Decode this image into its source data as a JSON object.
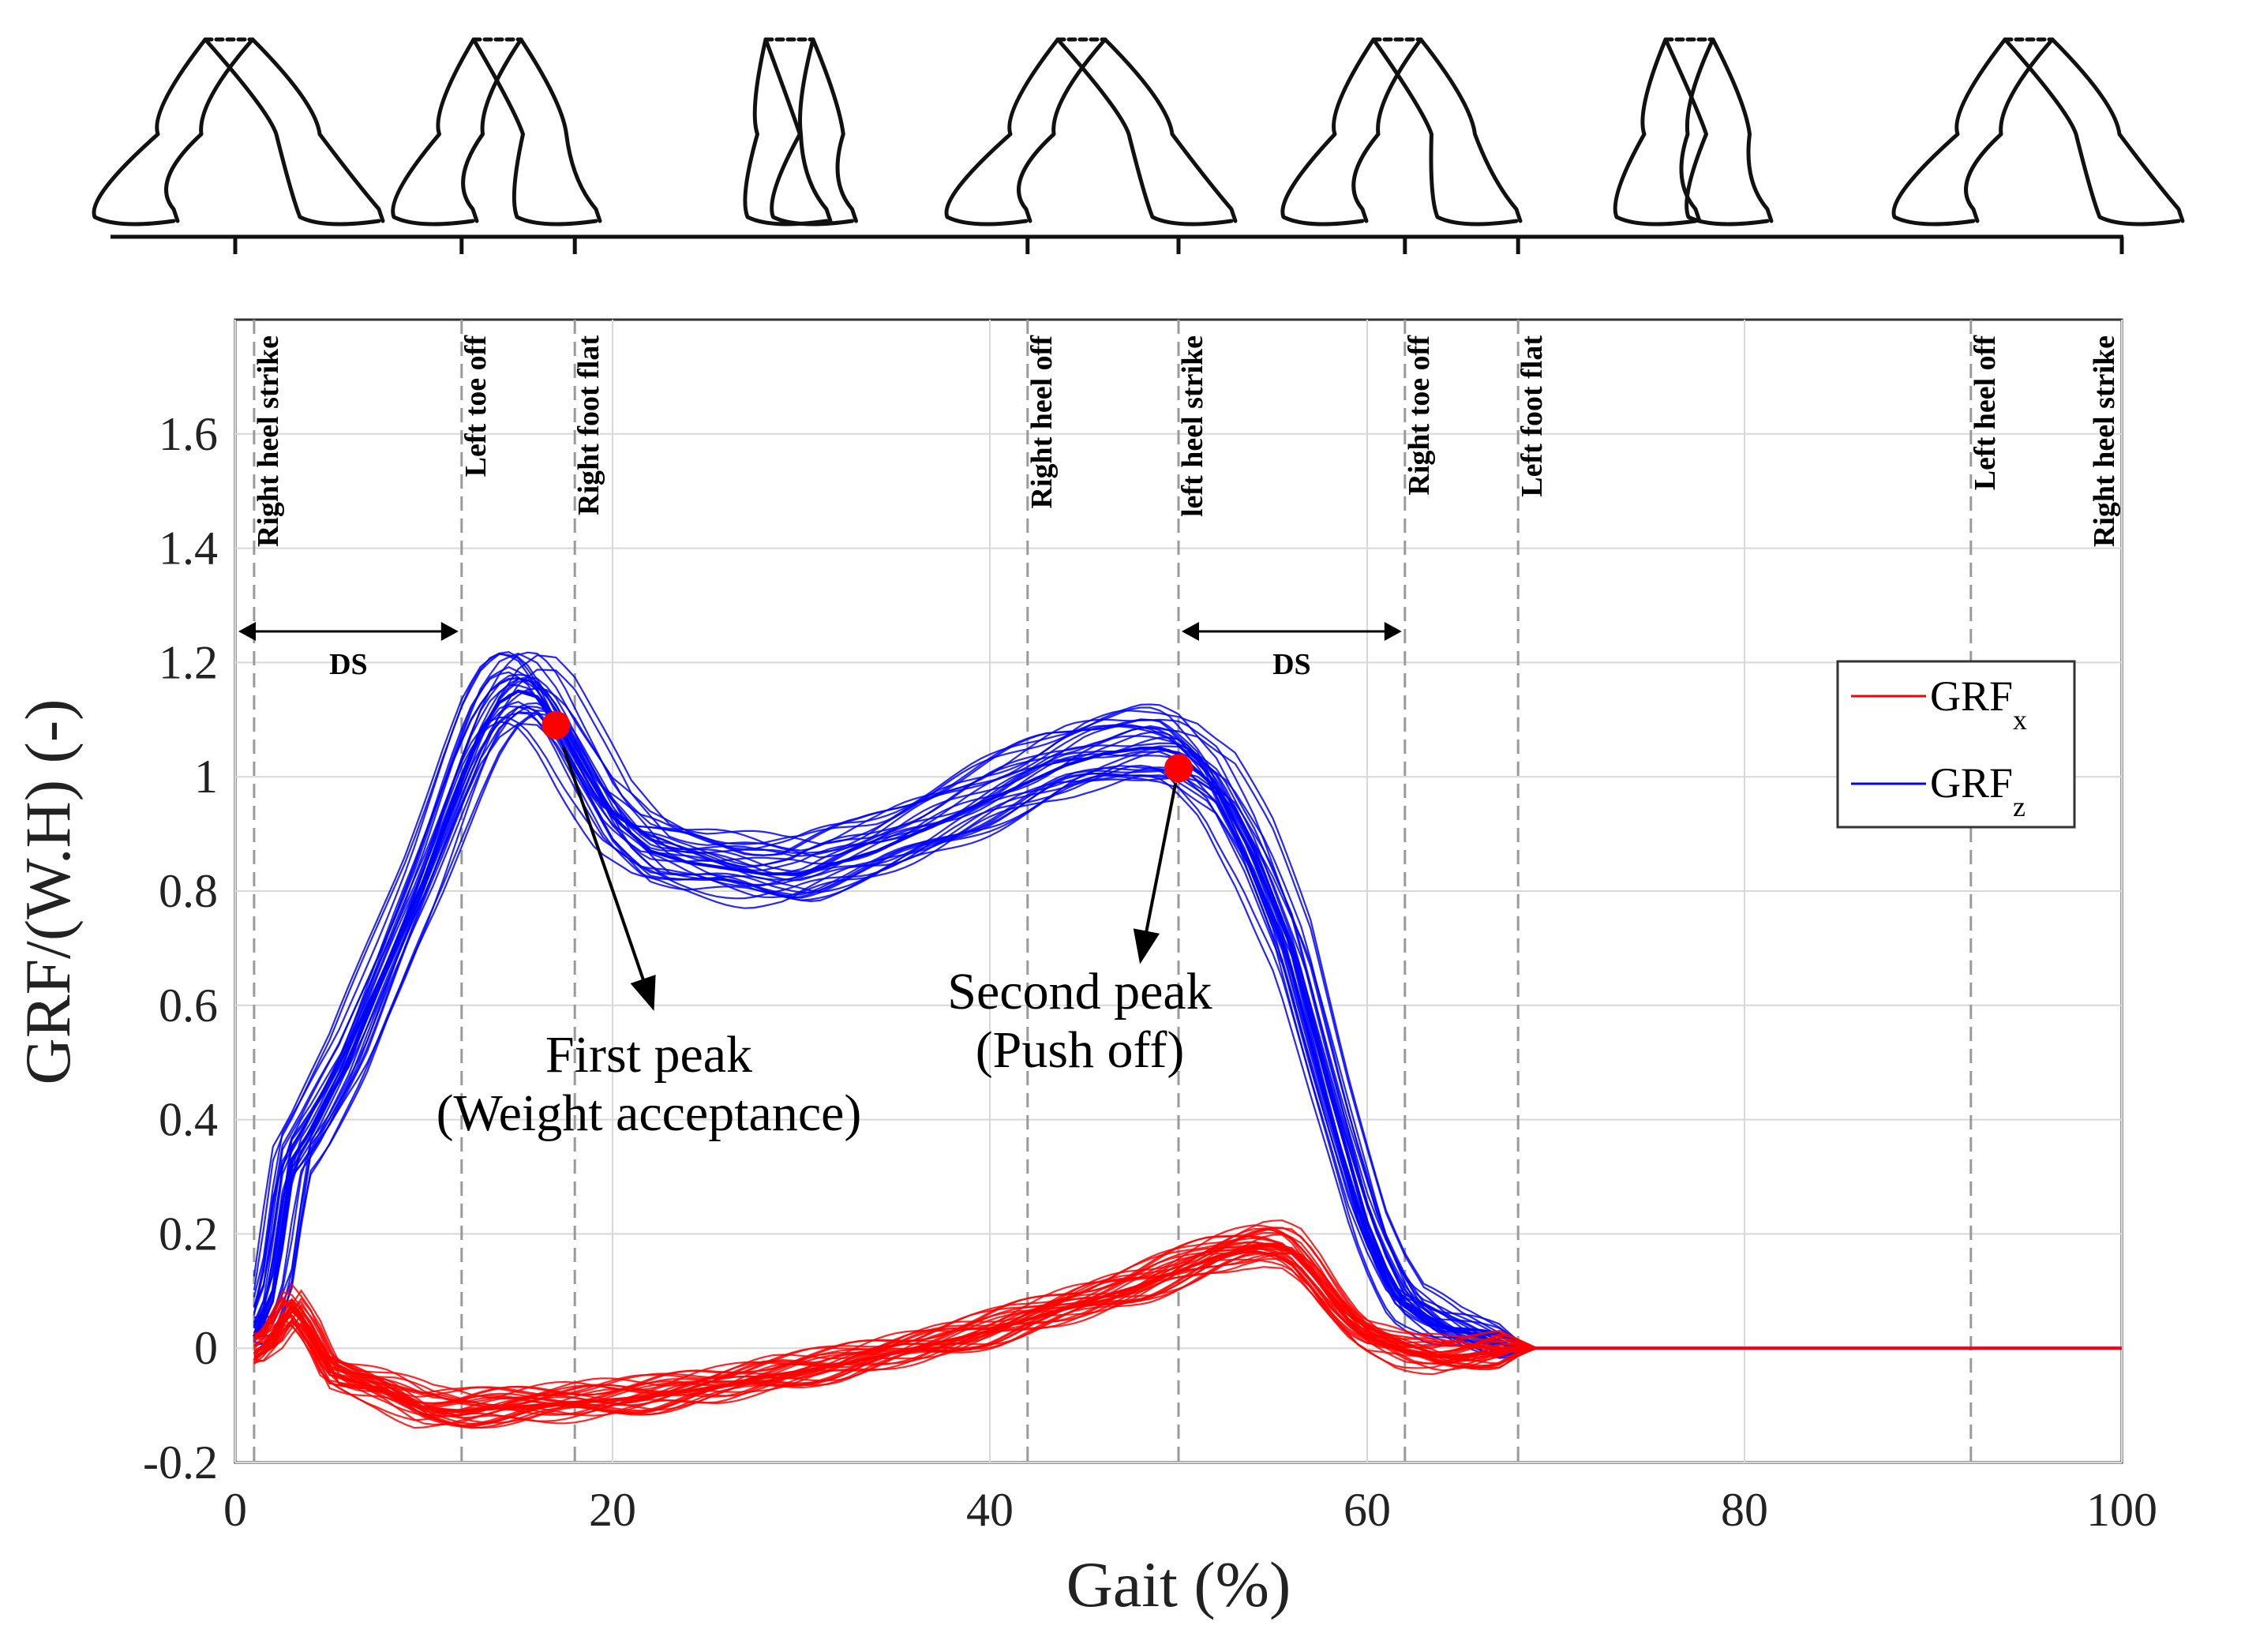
{
  "chart_data": {
    "type": "line",
    "xlabel": "Gait (%)",
    "ylabel": "GRF/(W.H) (-)",
    "xlim": [
      0,
      100
    ],
    "ylim": [
      -0.2,
      1.8
    ],
    "x_ticks": [
      0,
      20,
      40,
      60,
      80,
      100
    ],
    "y_ticks": [
      -0.2,
      0,
      0.2,
      0.4,
      0.6,
      0.8,
      1,
      1.2,
      1.4,
      1.6
    ],
    "y_tick_labels": [
      "-0.2",
      "0",
      "0.2",
      "0.4",
      "0.6",
      "0.8",
      "1",
      "1.2",
      "1.4",
      "1.6"
    ],
    "grid": true,
    "series": [
      {
        "name": "GRF_x",
        "legend_main": "GRF",
        "legend_sub": "x",
        "color": "#ff0000",
        "trial_count": 30,
        "x": [
          1,
          2,
          3,
          4,
          5,
          6,
          8,
          10,
          12,
          14,
          16,
          18,
          20,
          22,
          24,
          26,
          28,
          30,
          32,
          34,
          36,
          38,
          40,
          42,
          44,
          46,
          48,
          50,
          52,
          54,
          55,
          56,
          57,
          58,
          59,
          60,
          62,
          64,
          66,
          68,
          70,
          75,
          80,
          85,
          90,
          95,
          100
        ],
        "values": [
          -0.01,
          0.02,
          0.075,
          0.03,
          -0.04,
          -0.055,
          -0.075,
          -0.105,
          -0.11,
          -0.105,
          -0.1,
          -0.095,
          -0.09,
          -0.085,
          -0.075,
          -0.065,
          -0.05,
          -0.04,
          -0.03,
          -0.015,
          0,
          0.015,
          0.03,
          0.05,
          0.07,
          0.09,
          0.11,
          0.135,
          0.16,
          0.178,
          0.18,
          0.17,
          0.135,
          0.09,
          0.05,
          0.02,
          -0.005,
          -0.015,
          -0.01,
          0,
          0,
          0,
          0,
          0,
          0,
          0,
          0
        ]
      },
      {
        "name": "GRF_z",
        "legend_main": "GRF",
        "legend_sub": "z",
        "color": "#0000ff",
        "trial_count": 30,
        "x": [
          1,
          2,
          3,
          4,
          6,
          8,
          10,
          12,
          13,
          14,
          15,
          16,
          17,
          18,
          20,
          22,
          24,
          26,
          28,
          30,
          32,
          34,
          36,
          38,
          40,
          42,
          44,
          46,
          48,
          49,
          50,
          52,
          54,
          56,
          58,
          60,
          61,
          62,
          64,
          66,
          67,
          68,
          70,
          80,
          90,
          100
        ],
        "values": [
          0.02,
          0.1,
          0.33,
          0.38,
          0.5,
          0.66,
          0.82,
          1.0,
          1.08,
          1.13,
          1.15,
          1.14,
          1.1,
          1.04,
          0.93,
          0.87,
          0.85,
          0.84,
          0.83,
          0.83,
          0.85,
          0.87,
          0.9,
          0.93,
          0.96,
          0.99,
          1.02,
          1.04,
          1.05,
          1.05,
          1.04,
          0.98,
          0.86,
          0.7,
          0.45,
          0.22,
          0.14,
          0.08,
          0.04,
          0.02,
          0.01,
          0.0,
          0.0,
          0.0,
          0.0,
          0.0
        ]
      }
    ],
    "gait_events": [
      {
        "label": "Right heel strike",
        "x": 1
      },
      {
        "label": "Left toe off",
        "x": 12
      },
      {
        "label": "Right foot flat",
        "x": 18
      },
      {
        "label": "Right heel off",
        "x": 42
      },
      {
        "label": "left heel strike",
        "x": 50
      },
      {
        "label": "Right toe off",
        "x": 62
      },
      {
        "label": "Left foot flat",
        "x": 68
      },
      {
        "label": "Left heel off",
        "x": 92
      },
      {
        "label": "Right heel strike",
        "x": 100
      }
    ],
    "double_support": [
      {
        "label": "DS",
        "x_start": 0,
        "x_end": 12
      },
      {
        "label": "DS",
        "x_start": 50,
        "x_end": 62
      }
    ],
    "peaks": [
      {
        "title_line1": "First peak",
        "title_line2": "(Weight acceptance)",
        "x": 17,
        "y": 1.09
      },
      {
        "title_line1": "Second peak",
        "title_line2": "(Push off)",
        "x": 50,
        "y": 1.015
      }
    ],
    "legend_position": "right"
  }
}
